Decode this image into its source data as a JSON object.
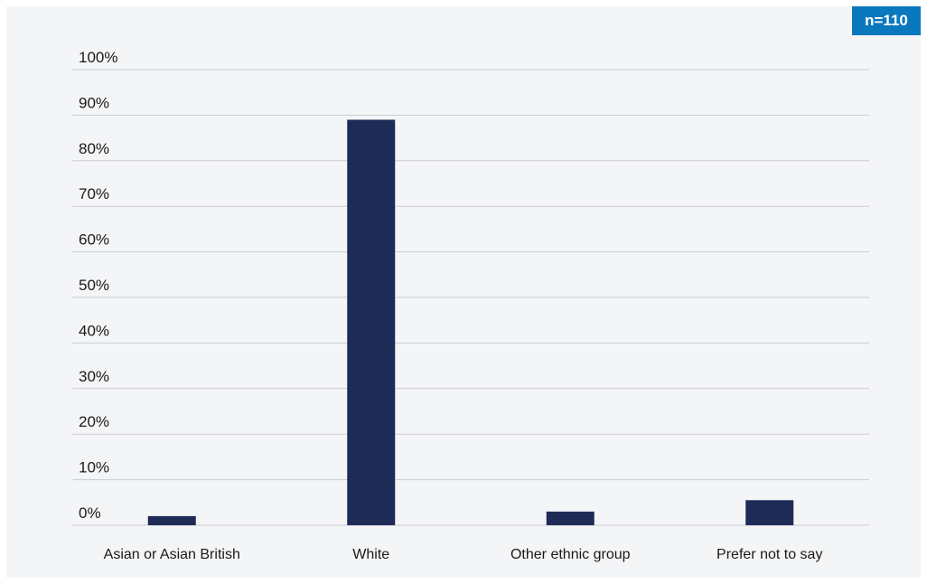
{
  "badge": {
    "text": "n=110",
    "color": "#0a78bd"
  },
  "chart_data": {
    "type": "bar",
    "categories": [
      "Asian or Asian British",
      "White",
      "Other ethnic group",
      "Prefer not to say"
    ],
    "values": [
      2,
      89,
      3,
      5.5
    ],
    "ylim": [
      0,
      100
    ],
    "yticks": [
      0,
      10,
      20,
      30,
      40,
      50,
      60,
      70,
      80,
      90,
      100
    ],
    "ytick_labels": [
      "0%",
      "10%",
      "20%",
      "30%",
      "40%",
      "50%",
      "60%",
      "70%",
      "80%",
      "90%",
      "100%"
    ],
    "bar_color": "#1f2b57",
    "grid": true,
    "grid_color": "#c9ccd3"
  }
}
